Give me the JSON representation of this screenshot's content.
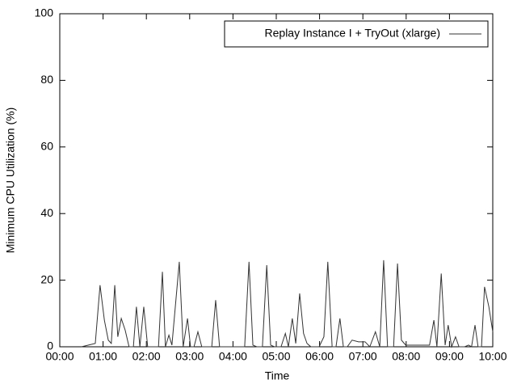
{
  "chart_data": {
    "type": "line",
    "xlabel": "Time",
    "ylabel": "Minimum CPU Utilization (%)",
    "xlim": [
      0,
      10
    ],
    "ylim": [
      0,
      100
    ],
    "xticks": [
      {
        "value": 0,
        "label": "00:00"
      },
      {
        "value": 1,
        "label": "01:00"
      },
      {
        "value": 2,
        "label": "02:00"
      },
      {
        "value": 3,
        "label": "03:00"
      },
      {
        "value": 4,
        "label": "04:00"
      },
      {
        "value": 5,
        "label": "05:00"
      },
      {
        "value": 6,
        "label": "06:00"
      },
      {
        "value": 7,
        "label": "07:00"
      },
      {
        "value": 8,
        "label": "08:00"
      },
      {
        "value": 9,
        "label": "09:00"
      },
      {
        "value": 10,
        "label": "10:00"
      }
    ],
    "yticks": [
      0,
      20,
      40,
      60,
      80,
      100
    ],
    "legend": "top-right",
    "series": [
      {
        "name": "Replay Instance I + TryOut (xlarge)",
        "color": "#333333",
        "x": [
          0.5,
          0.82,
          0.93,
          1.03,
          1.12,
          1.19,
          1.27,
          1.34,
          1.42,
          1.51,
          1.6,
          1.7,
          1.77,
          1.85,
          1.94,
          2.03,
          2.28,
          2.37,
          2.44,
          2.52,
          2.59,
          2.76,
          2.85,
          2.95,
          3.02,
          3.1,
          3.19,
          3.28,
          3.51,
          3.6,
          3.69,
          3.79,
          4.03,
          4.27,
          4.37,
          4.46,
          4.55,
          4.68,
          4.78,
          4.87,
          4.96,
          5.11,
          5.21,
          5.28,
          5.37,
          5.45,
          5.54,
          5.63,
          5.71,
          5.8,
          5.99,
          6.1,
          6.19,
          6.29,
          6.38,
          6.47,
          6.55,
          6.64,
          6.75,
          6.9,
          7.05,
          7.16,
          7.29,
          7.39,
          7.48,
          7.57,
          7.71,
          7.8,
          7.89,
          7.99,
          8.23,
          8.32,
          8.54,
          8.64,
          8.71,
          8.81,
          8.9,
          8.97,
          9.05,
          9.14,
          9.22,
          9.35,
          9.44,
          9.51,
          9.59,
          9.66,
          9.74,
          9.81,
          9.91,
          10.0
        ],
        "values": [
          0,
          1,
          18.5,
          8,
          2,
          1,
          18.5,
          3,
          8.5,
          5,
          0,
          0,
          12,
          0,
          12,
          0,
          0,
          22.5,
          0,
          3.5,
          0.5,
          25.5,
          0,
          8.5,
          0,
          0,
          4.5,
          0,
          0,
          14,
          0,
          0,
          0,
          0,
          25.5,
          0.5,
          0,
          0,
          24.5,
          0.5,
          0,
          0,
          4,
          0,
          8.5,
          1,
          16,
          4,
          1,
          0,
          0,
          3,
          25.5,
          0,
          0,
          8.5,
          0,
          0,
          2,
          1.5,
          1.5,
          0,
          4.5,
          0,
          26,
          0,
          0,
          25,
          2,
          0.5,
          0.5,
          0.5,
          0.5,
          8,
          0,
          22,
          0.5,
          6.5,
          0,
          3,
          0,
          0,
          0.5,
          0,
          6.5,
          0,
          0,
          18,
          12,
          4.5
        ]
      }
    ]
  }
}
